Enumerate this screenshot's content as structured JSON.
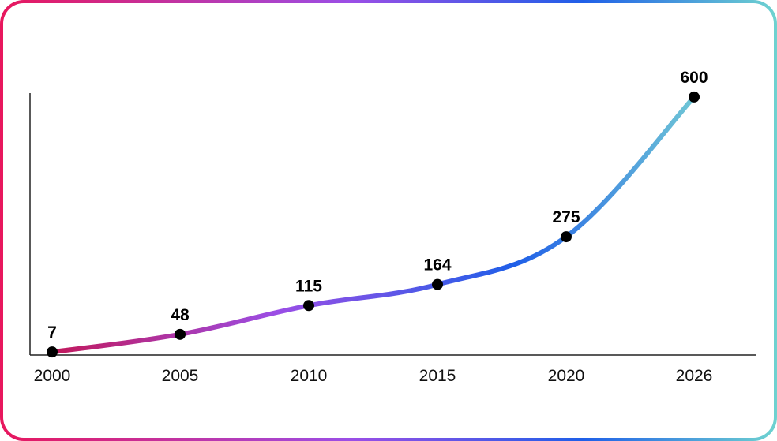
{
  "chart_data": {
    "type": "line",
    "title": "",
    "xlabel": "",
    "ylabel": "",
    "x": [
      "2000",
      "2005",
      "2010",
      "2015",
      "2020",
      "2026"
    ],
    "values": [
      7,
      48,
      115,
      164,
      275,
      600
    ],
    "data_labels": [
      "7",
      "48",
      "115",
      "164",
      "275",
      "600"
    ],
    "ylim": [
      0,
      620
    ],
    "grid": false,
    "legend": "none",
    "line_gradient": [
      "#c2185b",
      "#9b4ee6",
      "#1f5fe8",
      "#6fc6d6"
    ],
    "frame_gradient": [
      "#e8175d",
      "#9b4ee6",
      "#1f5fe8",
      "#6fd3d0"
    ],
    "marker_color": "#000000"
  }
}
